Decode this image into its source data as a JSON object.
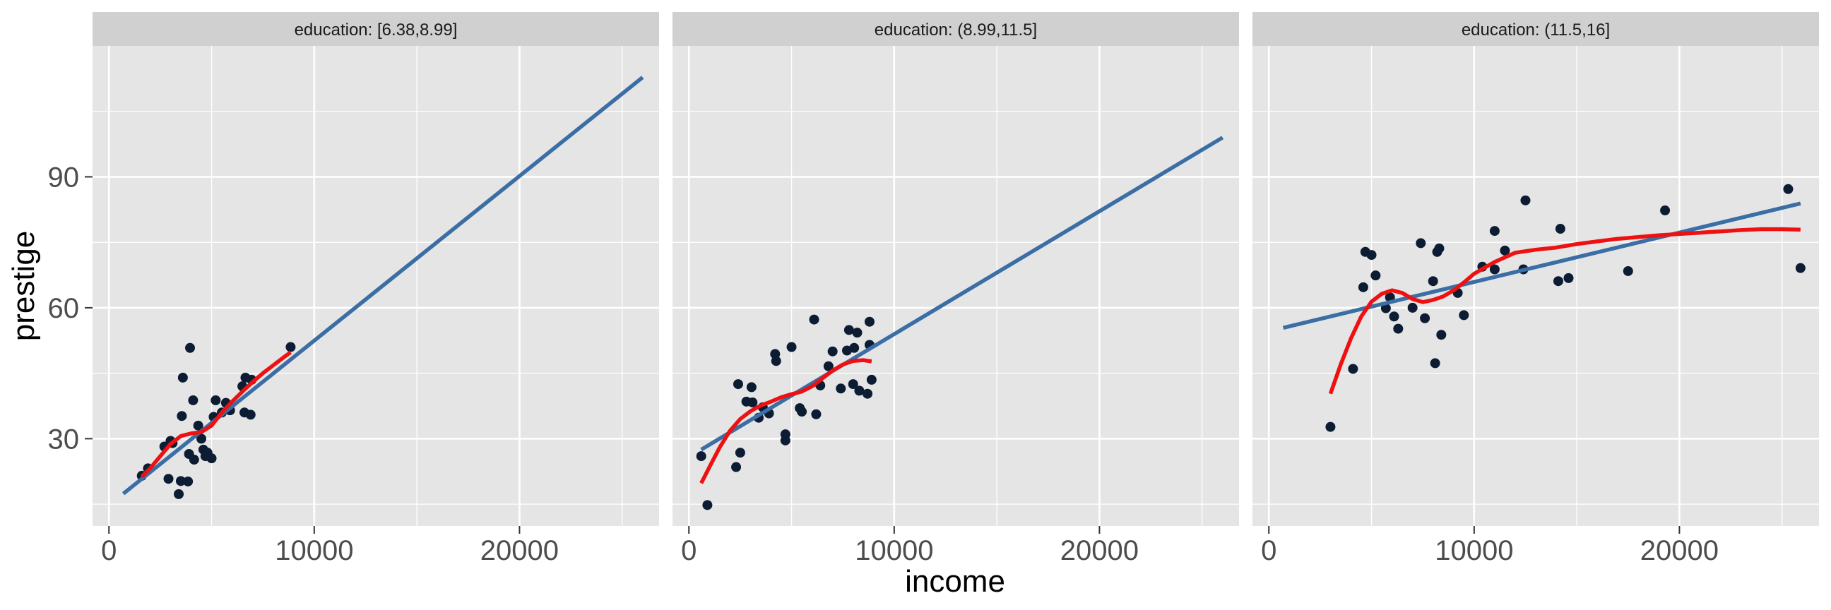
{
  "chart_data": {
    "type": "scatter",
    "xlabel": "income",
    "ylabel": "prestige",
    "xlim": [
      -800,
      26800
    ],
    "ylim": [
      10,
      120
    ],
    "x_ticks": [
      0,
      10000,
      20000
    ],
    "x_tick_labels": [
      "0",
      "10000",
      "20000"
    ],
    "y_ticks": [
      30,
      60,
      90
    ],
    "y_tick_labels": [
      "30",
      "60",
      "90"
    ],
    "grid": true,
    "legend": "none",
    "colors": {
      "panel_bg": "#e5e5e5",
      "strip_bg": "#d0d0d0",
      "grid": "#ffffff",
      "points": "#0c1c33",
      "linear_fit": "#3a6ea5",
      "smooth_fit": "#ee1111"
    },
    "facets": [
      {
        "label": "education: [6.38,8.99]",
        "points": [
          [
            1600,
            21.5
          ],
          [
            1900,
            23.2
          ],
          [
            2700,
            28.2
          ],
          [
            2900,
            20.8
          ],
          [
            3000,
            29.5
          ],
          [
            3100,
            29.0
          ],
          [
            3400,
            17.3
          ],
          [
            3500,
            20.3
          ],
          [
            3550,
            35.2
          ],
          [
            3600,
            44.0
          ],
          [
            3850,
            20.2
          ],
          [
            3900,
            26.5
          ],
          [
            3950,
            50.8
          ],
          [
            4100,
            38.8
          ],
          [
            4150,
            25.2
          ],
          [
            4350,
            33.0
          ],
          [
            4500,
            30.0
          ],
          [
            4600,
            27.5
          ],
          [
            4700,
            26.0
          ],
          [
            4800,
            26.8
          ],
          [
            5000,
            25.5
          ],
          [
            5100,
            35.0
          ],
          [
            5200,
            38.8
          ],
          [
            5500,
            36.0
          ],
          [
            5700,
            38.2
          ],
          [
            5900,
            36.5
          ],
          [
            6500,
            42.0
          ],
          [
            6600,
            36.0
          ],
          [
            6650,
            44.0
          ],
          [
            6900,
            35.5
          ],
          [
            6950,
            43.5
          ],
          [
            8850,
            51.0
          ]
        ],
        "linear_fit": [
          [
            700,
            17.4
          ],
          [
            26000,
            112.8
          ]
        ],
        "smooth_fit": [
          [
            1600,
            21.3
          ],
          [
            2000,
            23.2
          ],
          [
            2500,
            26.0
          ],
          [
            3000,
            28.8
          ],
          [
            3500,
            30.6
          ],
          [
            4000,
            31.2
          ],
          [
            4500,
            31.5
          ],
          [
            5000,
            33.0
          ],
          [
            5500,
            36.0
          ],
          [
            6000,
            38.5
          ],
          [
            6500,
            40.8
          ],
          [
            7000,
            43.0
          ],
          [
            7500,
            45.0
          ],
          [
            8000,
            46.8
          ],
          [
            8500,
            48.6
          ],
          [
            8850,
            49.8
          ]
        ]
      },
      {
        "label": "education: (8.99,11.5]",
        "points": [
          [
            600,
            26.0
          ],
          [
            900,
            14.8
          ],
          [
            2300,
            23.5
          ],
          [
            2400,
            42.5
          ],
          [
            2500,
            26.8
          ],
          [
            2800,
            38.5
          ],
          [
            3050,
            41.8
          ],
          [
            3100,
            38.3
          ],
          [
            3400,
            34.8
          ],
          [
            3600,
            37.2
          ],
          [
            3900,
            35.8
          ],
          [
            4200,
            49.4
          ],
          [
            4250,
            47.8
          ],
          [
            4700,
            31.0
          ],
          [
            4700,
            29.6
          ],
          [
            5000,
            51.0
          ],
          [
            5400,
            37.0
          ],
          [
            5500,
            36.2
          ],
          [
            6100,
            57.3
          ],
          [
            6200,
            35.6
          ],
          [
            6400,
            42.2
          ],
          [
            6800,
            46.6
          ],
          [
            7000,
            50.0
          ],
          [
            7400,
            41.5
          ],
          [
            7700,
            50.2
          ],
          [
            7800,
            54.9
          ],
          [
            8000,
            42.5
          ],
          [
            8050,
            50.8
          ],
          [
            8200,
            54.3
          ],
          [
            8300,
            41.0
          ],
          [
            8700,
            40.3
          ],
          [
            8800,
            51.5
          ],
          [
            8800,
            56.8
          ],
          [
            8900,
            43.5
          ]
        ],
        "linear_fit": [
          [
            600,
            27.5
          ],
          [
            26000,
            99.0
          ]
        ],
        "smooth_fit": [
          [
            600,
            19.8
          ],
          [
            1000,
            23.5
          ],
          [
            1500,
            28.0
          ],
          [
            2000,
            31.8
          ],
          [
            2500,
            34.5
          ],
          [
            3000,
            36.3
          ],
          [
            3500,
            37.6
          ],
          [
            4000,
            38.5
          ],
          [
            4500,
            39.5
          ],
          [
            5000,
            40.2
          ],
          [
            5500,
            40.8
          ],
          [
            6000,
            42.0
          ],
          [
            6500,
            43.8
          ],
          [
            7000,
            45.6
          ],
          [
            7500,
            47.0
          ],
          [
            8000,
            47.8
          ],
          [
            8500,
            48.0
          ],
          [
            8900,
            47.7
          ]
        ]
      },
      {
        "label": "education: (11.5,16]",
        "points": [
          [
            3000,
            32.7
          ],
          [
            4100,
            46.0
          ],
          [
            4600,
            64.7
          ],
          [
            4700,
            72.8
          ],
          [
            5000,
            72.1
          ],
          [
            5200,
            67.4
          ],
          [
            5700,
            59.9
          ],
          [
            5900,
            62.4
          ],
          [
            6100,
            58.0
          ],
          [
            6300,
            55.2
          ],
          [
            7000,
            60.0
          ],
          [
            7400,
            74.8
          ],
          [
            7600,
            57.6
          ],
          [
            8000,
            66.1
          ],
          [
            8100,
            47.3
          ],
          [
            8200,
            72.8
          ],
          [
            8300,
            73.6
          ],
          [
            8400,
            53.8
          ],
          [
            9200,
            63.4
          ],
          [
            9500,
            58.3
          ],
          [
            10400,
            69.4
          ],
          [
            11000,
            68.8
          ],
          [
            11000,
            77.6
          ],
          [
            11500,
            73.1
          ],
          [
            12400,
            68.8
          ],
          [
            12500,
            84.6
          ],
          [
            14100,
            66.1
          ],
          [
            14200,
            78.1
          ],
          [
            14600,
            66.8
          ],
          [
            17500,
            68.4
          ],
          [
            19300,
            82.3
          ],
          [
            25300,
            87.2
          ],
          [
            25900,
            69.1
          ]
        ],
        "linear_fit": [
          [
            700,
            55.4
          ],
          [
            25900,
            83.9
          ]
        ],
        "smooth_fit": [
          [
            3000,
            40.3
          ],
          [
            3500,
            47.0
          ],
          [
            4000,
            53.0
          ],
          [
            4500,
            58.0
          ],
          [
            5000,
            61.4
          ],
          [
            5500,
            63.2
          ],
          [
            6000,
            64.0
          ],
          [
            6500,
            63.4
          ],
          [
            7000,
            62.0
          ],
          [
            7500,
            61.3
          ],
          [
            8000,
            61.8
          ],
          [
            8500,
            62.6
          ],
          [
            9000,
            64.0
          ],
          [
            9500,
            65.8
          ],
          [
            10000,
            67.8
          ],
          [
            11000,
            70.5
          ],
          [
            12000,
            72.6
          ],
          [
            13000,
            73.3
          ],
          [
            14000,
            73.8
          ],
          [
            15000,
            74.6
          ],
          [
            16000,
            75.2
          ],
          [
            17000,
            75.8
          ],
          [
            18000,
            76.2
          ],
          [
            19000,
            76.6
          ],
          [
            20000,
            76.9
          ],
          [
            21000,
            77.2
          ],
          [
            22000,
            77.5
          ],
          [
            23000,
            77.8
          ],
          [
            24000,
            78.0
          ],
          [
            25000,
            78.0
          ],
          [
            25900,
            77.9
          ]
        ]
      }
    ]
  }
}
